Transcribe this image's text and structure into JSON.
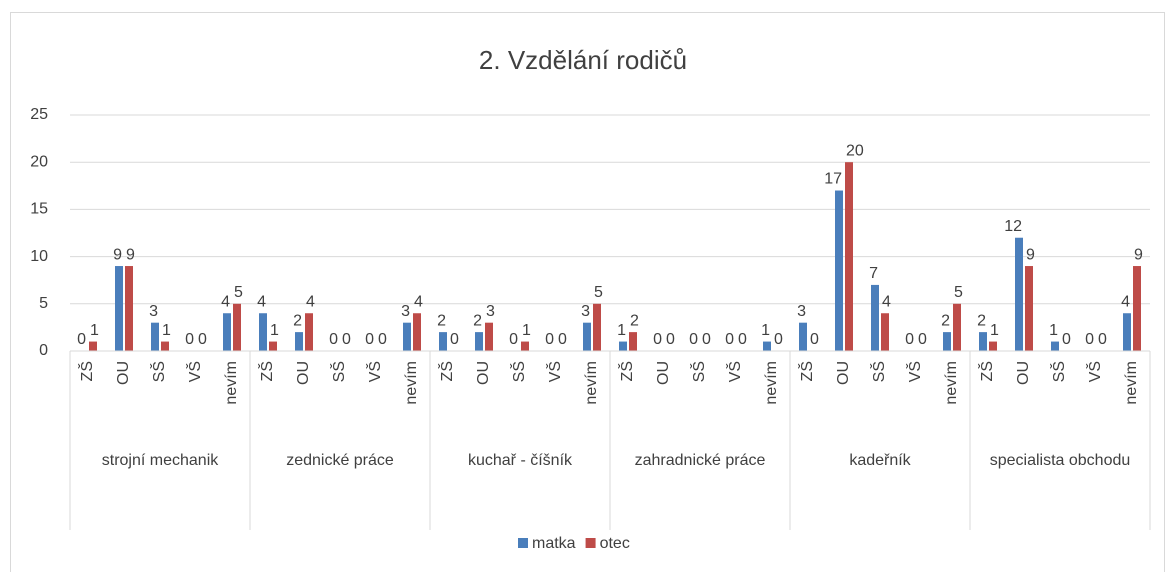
{
  "chart_data": {
    "type": "bar",
    "title": "2. Vzdělání rodičů",
    "groups": [
      {
        "name": "strojní mechanik",
        "categories": [
          "ZŠ",
          "OU",
          "SŠ",
          "VŠ",
          "nevím"
        ]
      },
      {
        "name": "zednické práce",
        "categories": [
          "ZŠ",
          "OU",
          "SŠ",
          "VŠ",
          "nevím"
        ]
      },
      {
        "name": "kuchař - číšník",
        "categories": [
          "ZŠ",
          "OU",
          "SŠ",
          "VŠ",
          "nevím"
        ]
      },
      {
        "name": "zahradnické práce",
        "categories": [
          "ZŠ",
          "OU",
          "SŠ",
          "VŠ",
          "nevím"
        ]
      },
      {
        "name": "kadeřník",
        "categories": [
          "ZŠ",
          "OU",
          "SŠ",
          "VŠ",
          "nevím"
        ]
      },
      {
        "name": "specialista obchodu",
        "categories": [
          "ZŠ",
          "OU",
          "SŠ",
          "VŠ",
          "nevím"
        ]
      }
    ],
    "series": [
      {
        "name": "matka",
        "color": "#4a7ebb",
        "values": [
          0,
          9,
          3,
          0,
          4,
          4,
          2,
          0,
          0,
          3,
          2,
          2,
          0,
          0,
          3,
          1,
          0,
          0,
          0,
          1,
          3,
          17,
          7,
          0,
          2,
          2,
          12,
          1,
          0,
          4
        ]
      },
      {
        "name": "otec",
        "color": "#be4b48",
        "values": [
          1,
          9,
          1,
          0,
          5,
          1,
          4,
          0,
          0,
          4,
          0,
          3,
          1,
          0,
          5,
          2,
          0,
          0,
          0,
          0,
          0,
          20,
          4,
          0,
          5,
          1,
          9,
          0,
          0,
          9
        ]
      }
    ],
    "ylim": [
      0,
      25
    ],
    "yticks": [
      0,
      5,
      10,
      15,
      20,
      25
    ],
    "grid": true,
    "legend": "bottom"
  }
}
